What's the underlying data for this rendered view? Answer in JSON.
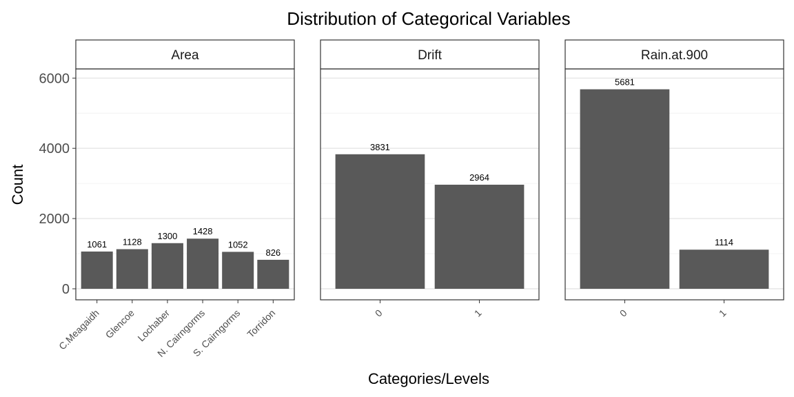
{
  "chart_data": {
    "type": "bar",
    "title": "Distribution of Categorical Variables",
    "xlabel": "Categories/Levels",
    "ylabel": "Count",
    "ylim": [
      -1000,
      7100
    ],
    "yticks": [
      0,
      2000,
      4000,
      6000
    ],
    "grid": true,
    "bar_color": "#595959",
    "panels": [
      {
        "facet": "Area",
        "categories": [
          "C.Meagaidh",
          "Glencoe",
          "Lochaber",
          "N. Cairngorms",
          "S. Cairngorms",
          "Torridon"
        ],
        "values": [
          1061,
          1128,
          1300,
          1428,
          1052,
          826
        ]
      },
      {
        "facet": "Drift",
        "categories": [
          "0",
          "1"
        ],
        "values": [
          3831,
          2964
        ]
      },
      {
        "facet": "Rain.at.900",
        "categories": [
          "0",
          "1"
        ],
        "values": [
          5681,
          1114
        ]
      }
    ]
  }
}
